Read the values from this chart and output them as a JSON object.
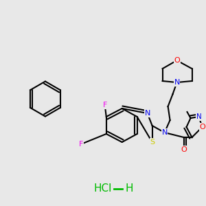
{
  "background_color": "#e8e8e8",
  "bond_color": "#000000",
  "lw": 1.5,
  "colors": {
    "O": "#ff0000",
    "N": "#0000ee",
    "S": "#cccc00",
    "F": "#ee00ee",
    "C": "#000000",
    "hcl": "#00bb00"
  },
  "figsize": [
    3.0,
    3.0
  ],
  "dpi": 100
}
